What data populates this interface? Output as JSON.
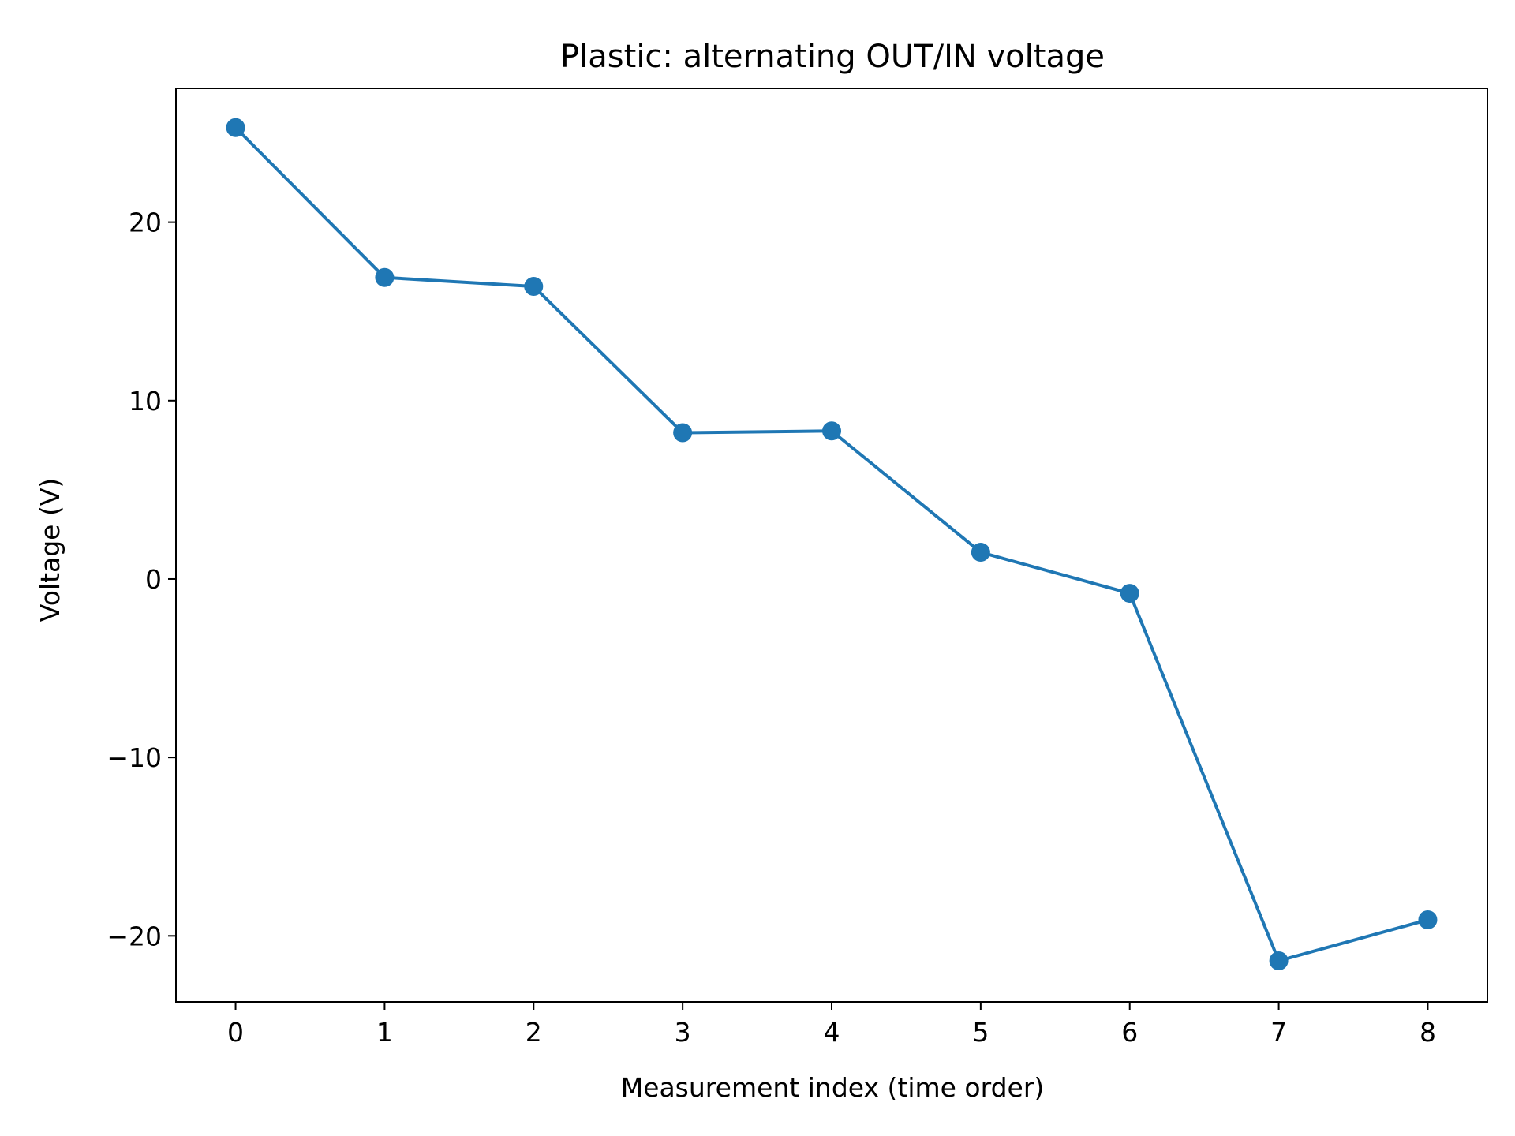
{
  "chart_data": {
    "type": "line",
    "title": "Plastic: alternating OUT/IN voltage",
    "xlabel": "Measurement index (time order)",
    "ylabel": "Voltage (V)",
    "x": [
      0,
      1,
      2,
      3,
      4,
      5,
      6,
      7,
      8
    ],
    "series": [
      {
        "values": [
          25.3,
          16.9,
          16.4,
          8.2,
          8.3,
          1.5,
          -0.8,
          -21.4,
          -19.1
        ]
      }
    ],
    "xlim": [
      -0.4,
      8.4
    ],
    "ylim": [
      -23.7,
      27.5
    ],
    "xticks": [
      0,
      1,
      2,
      3,
      4,
      5,
      6,
      7,
      8
    ],
    "yticks": [
      -20,
      -10,
      0,
      10,
      20
    ],
    "ytick_labels": [
      "−20",
      "−10",
      "0",
      "10",
      "20"
    ],
    "grid": false,
    "colors": {
      "line": "#1f77b4",
      "axes": "#000000"
    }
  }
}
